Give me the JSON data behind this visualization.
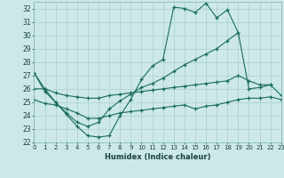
{
  "xlabel": "Humidex (Indice chaleur)",
  "bg_color": "#cce9e8",
  "grid_color": "#aacfce",
  "line_color": "#1a6b60",
  "ylim": [
    22,
    32.5
  ],
  "xlim": [
    0,
    23
  ],
  "yticks": [
    22,
    23,
    24,
    25,
    26,
    27,
    28,
    29,
    30,
    31,
    32
  ],
  "xticks": [
    0,
    1,
    2,
    3,
    4,
    5,
    6,
    7,
    8,
    9,
    10,
    11,
    12,
    13,
    14,
    15,
    16,
    17,
    18,
    19,
    20,
    21,
    22,
    23
  ],
  "s1": [
    27.2,
    26.0,
    25.0,
    24.1,
    23.2,
    22.5,
    22.4,
    22.5,
    24.0,
    25.2,
    26.7,
    27.7,
    28.2,
    32.1,
    32.0,
    31.7,
    32.4,
    31.3,
    31.9,
    30.2,
    null,
    null,
    null,
    null
  ],
  "s2": [
    27.2,
    25.8,
    25.0,
    24.2,
    23.5,
    23.2,
    23.5,
    24.5,
    25.1,
    25.6,
    26.1,
    26.4,
    26.8,
    27.3,
    27.8,
    28.2,
    28.6,
    29.0,
    29.6,
    30.2,
    26.0,
    26.1,
    26.3,
    null
  ],
  "s3": [
    26.0,
    26.0,
    25.7,
    25.5,
    25.4,
    25.3,
    25.3,
    25.5,
    25.6,
    25.7,
    25.8,
    25.9,
    26.0,
    26.1,
    26.2,
    26.3,
    26.4,
    26.5,
    26.6,
    27.0,
    26.6,
    26.3,
    26.3,
    25.5
  ],
  "s4": [
    25.2,
    24.9,
    24.8,
    24.5,
    24.2,
    23.8,
    23.8,
    24.0,
    24.2,
    24.3,
    24.4,
    24.5,
    24.6,
    24.7,
    24.8,
    24.5,
    24.7,
    24.8,
    25.0,
    25.2,
    25.3,
    25.3,
    25.4,
    25.2
  ]
}
